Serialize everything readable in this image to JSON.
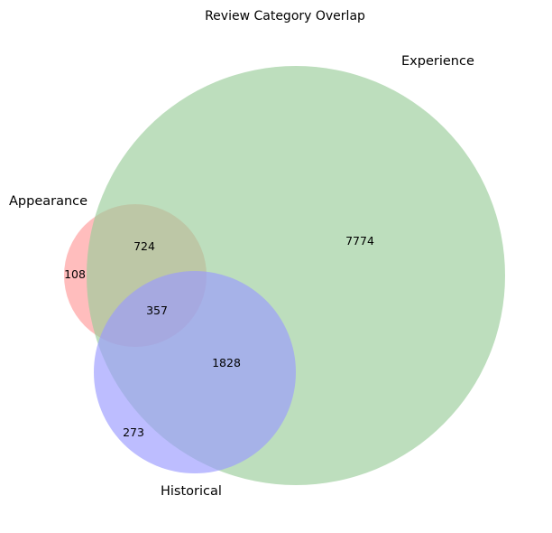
{
  "chart_data": {
    "type": "venn",
    "title": "Review Category Overlap",
    "sets": [
      {
        "name": "Appearance",
        "color": "#ff9999"
      },
      {
        "name": "Experience",
        "color": "#99cc99"
      },
      {
        "name": "Historical",
        "color": "#9999ff"
      }
    ],
    "regions": [
      {
        "sets": [
          "Appearance"
        ],
        "value": 108
      },
      {
        "sets": [
          "Experience"
        ],
        "value": 7774
      },
      {
        "sets": [
          "Historical"
        ],
        "value": 273
      },
      {
        "sets": [
          "Appearance",
          "Experience"
        ],
        "value": 724
      },
      {
        "sets": [
          "Experience",
          "Historical"
        ],
        "value": 1828
      },
      {
        "sets": [
          "Appearance",
          "Experience",
          "Historical"
        ],
        "value": 357
      }
    ]
  }
}
